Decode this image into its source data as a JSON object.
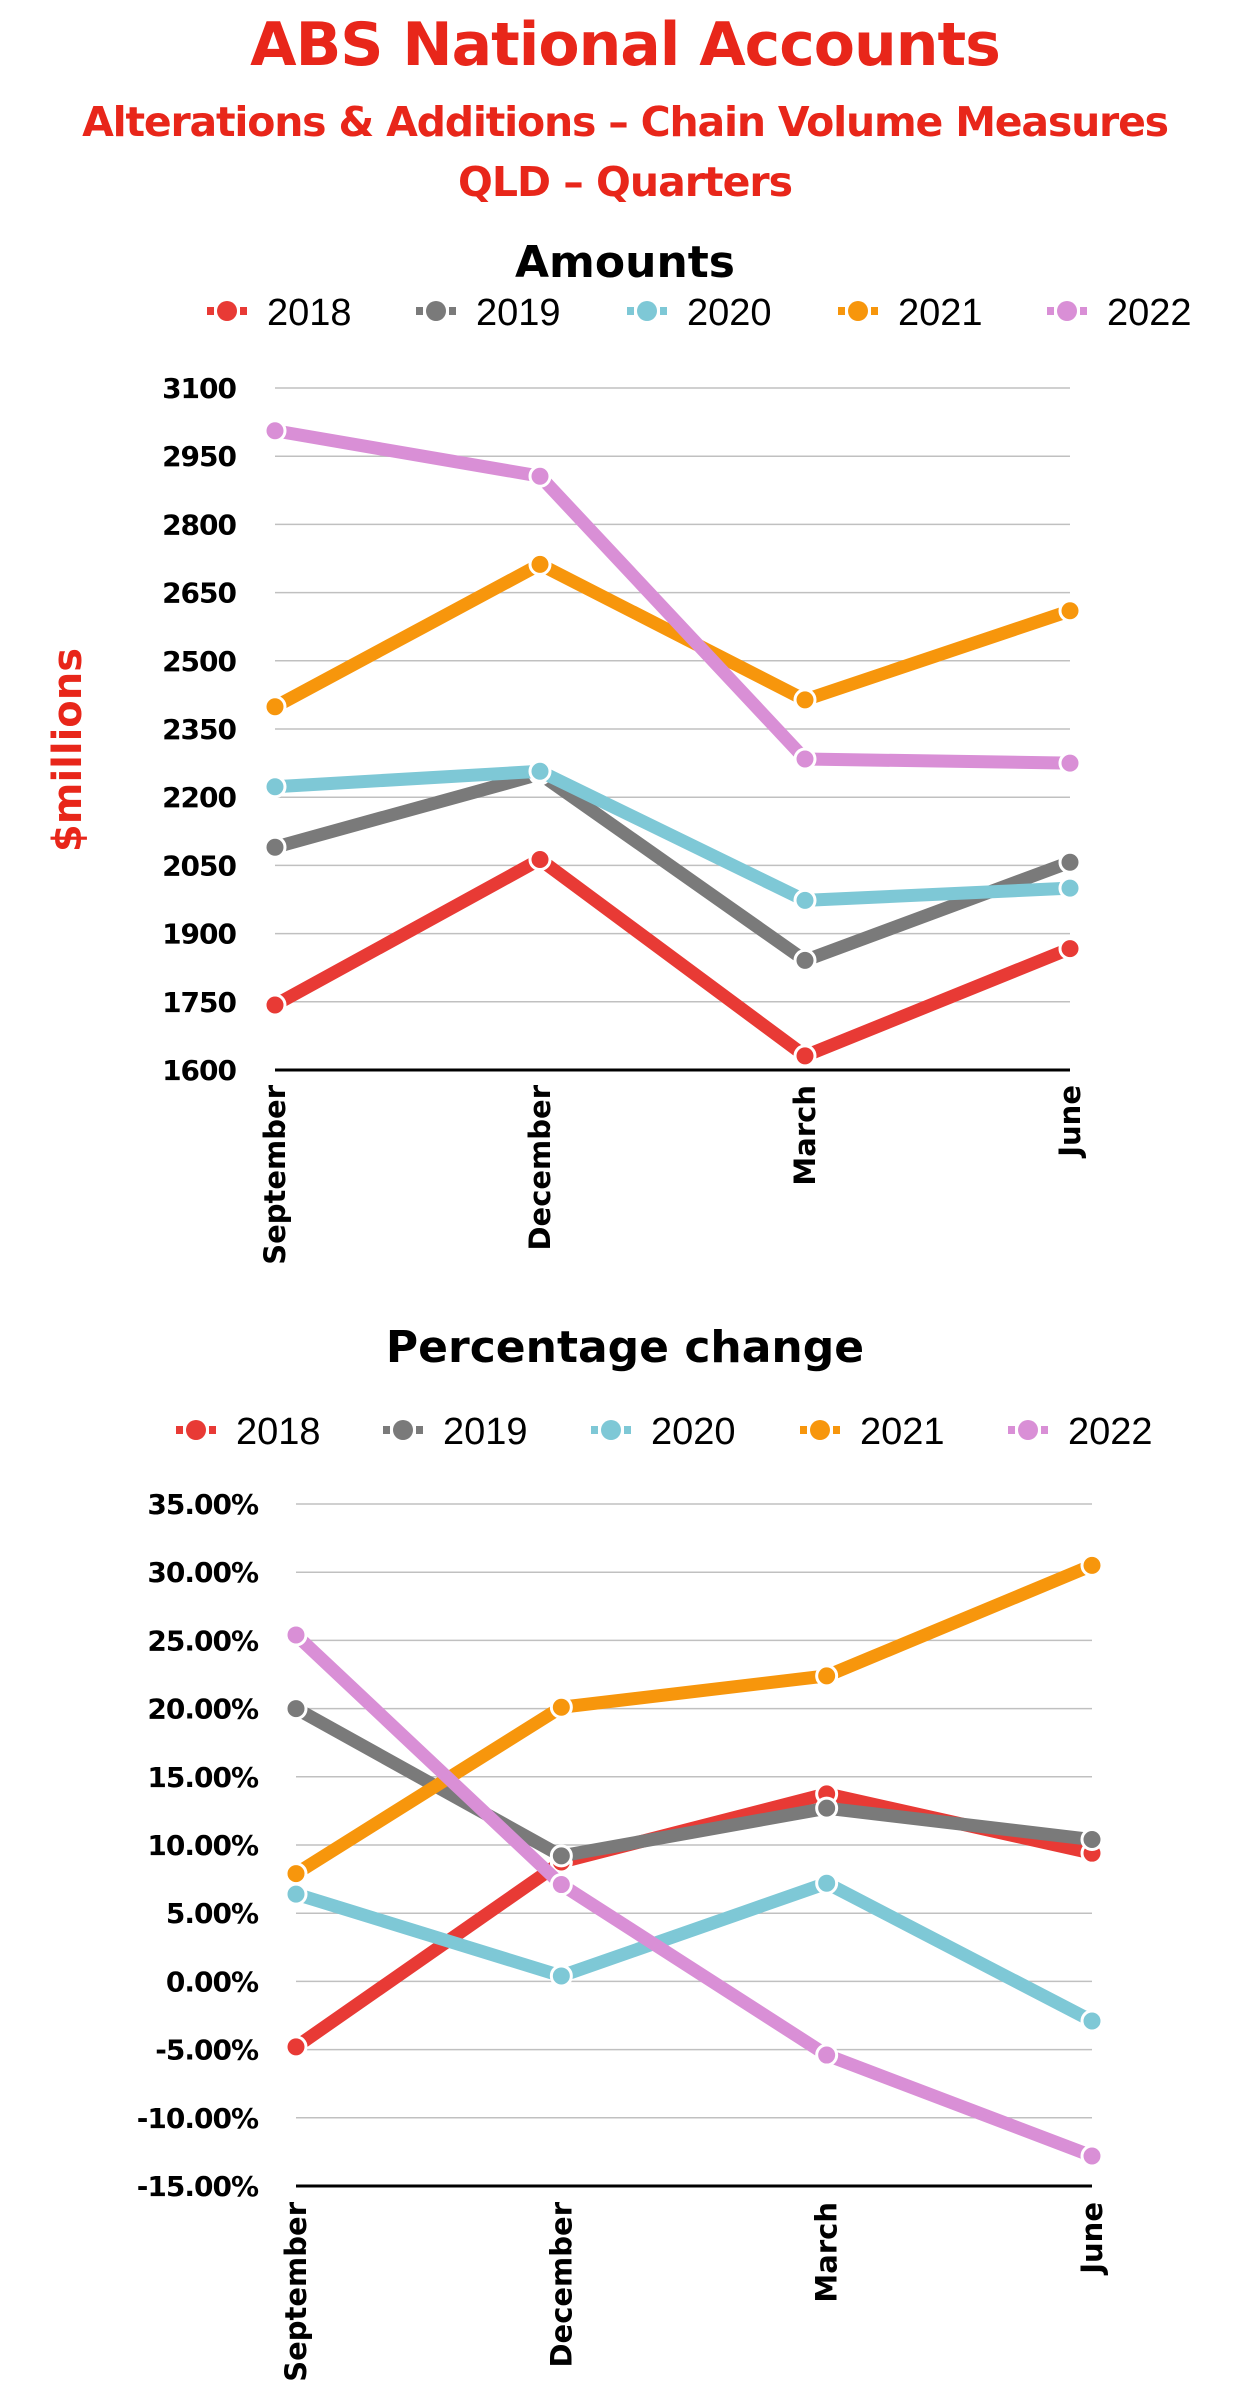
{
  "header": {
    "title": "ABS National Accounts",
    "subtitle_line1": "Alterations & Additions – Chain Volume Measures",
    "subtitle_line2": "QLD – Quarters"
  },
  "colors": {
    "title": "#e8261a",
    "2018": "#e83a35",
    "2019": "#7a7a7a",
    "2020": "#7ec8d6",
    "2021": "#f7960c",
    "2022": "#d98fd6"
  },
  "chart_data": [
    {
      "type": "line",
      "title": "Amounts",
      "xlabel": "",
      "ylabel": "$millions",
      "categories": [
        "September",
        "December",
        "March",
        "June"
      ],
      "ylim": [
        1600,
        3100
      ],
      "yticks": [
        1600,
        1750,
        1900,
        2050,
        2200,
        2350,
        2500,
        2650,
        2800,
        2950,
        3100
      ],
      "ytick_labels": [
        "1600",
        "1750",
        "1900",
        "2050",
        "2200",
        "2350",
        "2500",
        "2650",
        "2800",
        "2950",
        "3100"
      ],
      "grid": true,
      "legend": "top-center",
      "series": [
        {
          "name": "2018",
          "values": [
            1743,
            2063,
            1631,
            1867
          ]
        },
        {
          "name": "2019",
          "values": [
            2090,
            2251,
            1841,
            2057
          ]
        },
        {
          "name": "2020",
          "values": [
            2223,
            2257,
            1973,
            2000
          ]
        },
        {
          "name": "2021",
          "values": [
            2399,
            2712,
            2414,
            2610
          ]
        },
        {
          "name": "2022",
          "values": [
            3006,
            2906,
            2284,
            2275
          ]
        }
      ]
    },
    {
      "type": "line",
      "title": "Percentage change",
      "xlabel": "",
      "ylabel": "",
      "categories": [
        "September",
        "December",
        "March",
        "June"
      ],
      "ylim": [
        -15,
        35
      ],
      "yticks": [
        -15,
        -10,
        -5,
        0,
        5,
        10,
        15,
        20,
        25,
        30,
        35
      ],
      "ytick_labels": [
        "-15.00%",
        "-10.00%",
        "-5.00%",
        "0.00%",
        "5.00%",
        "10.00%",
        "15.00%",
        "20.00%",
        "25.00%",
        "30.00%",
        "35.00%"
      ],
      "grid": true,
      "legend": "top-center",
      "series": [
        {
          "name": "2018",
          "values": [
            -4.8,
            8.75,
            13.75,
            9.4
          ]
        },
        {
          "name": "2019",
          "values": [
            20.0,
            9.2,
            12.7,
            10.4
          ]
        },
        {
          "name": "2020",
          "values": [
            6.4,
            0.4,
            7.2,
            -2.9
          ]
        },
        {
          "name": "2021",
          "values": [
            7.9,
            20.1,
            22.4,
            30.5
          ]
        },
        {
          "name": "2022",
          "values": [
            25.4,
            7.1,
            -5.4,
            -12.8
          ]
        }
      ]
    }
  ]
}
